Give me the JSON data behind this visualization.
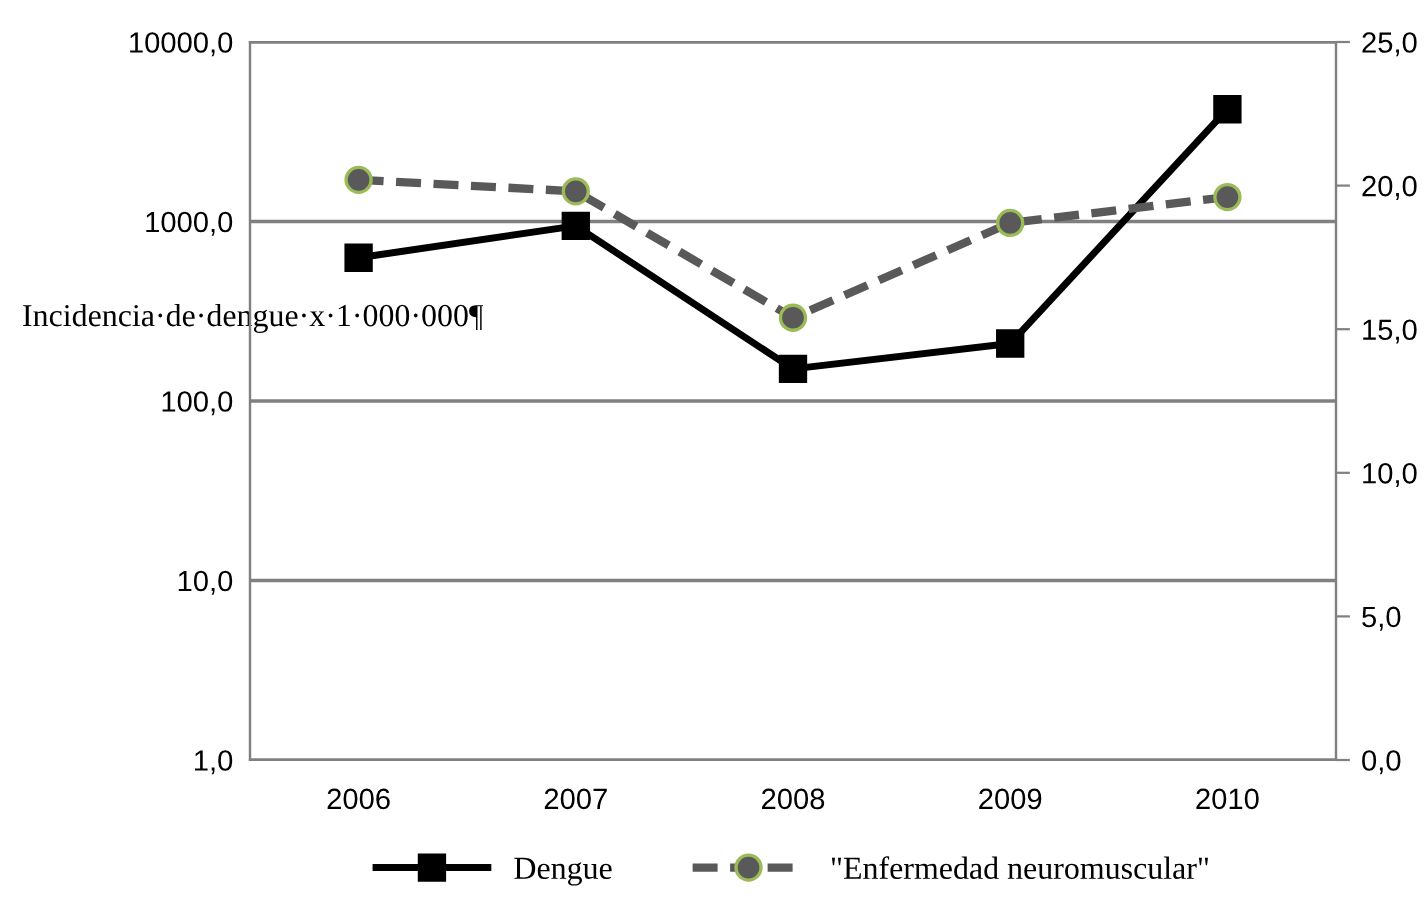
{
  "chart_data": {
    "type": "line",
    "ylabel": "Incidencia·de·dengue·x·1·000·000¶",
    "categories": [
      "2006",
      "2007",
      "2008",
      "2009",
      "2010"
    ],
    "series": [
      {
        "name": "Dengue",
        "color": "#000000",
        "marker": "square",
        "line_style": "solid",
        "values": [
          628,
          945,
          151,
          209,
          4220
        ]
      },
      {
        "name": "\"Enfermedad neuromuscular\"",
        "color": "#595959",
        "marker": "circle",
        "line_style": "dashed",
        "axis": "y2",
        "values": [
          20.2,
          19.8,
          15.4,
          18.7,
          19.6
        ]
      }
    ],
    "log": "y",
    "ylim": [
      1,
      10000
    ],
    "yticks": [
      {
        "value": 1,
        "label": "1,0"
      },
      {
        "value": 10,
        "label": "10,0"
      },
      {
        "value": 100,
        "label": "100,0"
      },
      {
        "value": 1000,
        "label": "1000,0"
      },
      {
        "value": 10000,
        "label": "10000,0"
      }
    ],
    "y2lim": [
      0,
      25
    ],
    "y2ticks": [
      {
        "value": 0,
        "label": "0,0"
      },
      {
        "value": 5,
        "label": "5,0"
      },
      {
        "value": 10,
        "label": "10,0"
      },
      {
        "value": 15,
        "label": "15,0"
      },
      {
        "value": 20,
        "label": "20,0"
      },
      {
        "value": 25,
        "label": "25,0"
      }
    ],
    "grid": "y",
    "legend": "bottom"
  }
}
